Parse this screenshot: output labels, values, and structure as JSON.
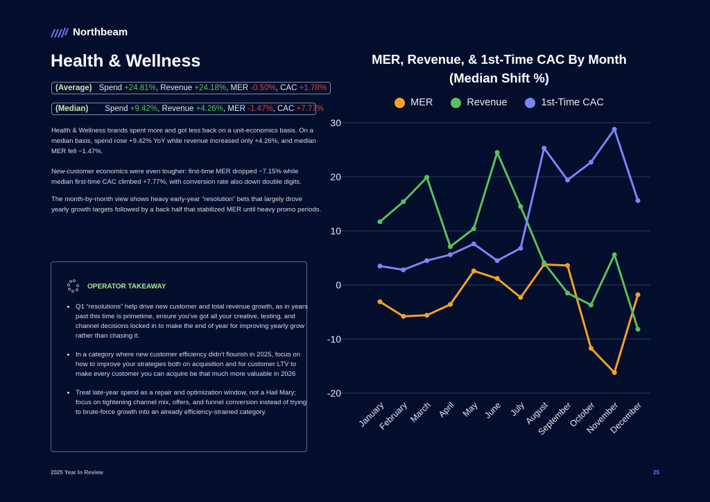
{
  "brand": {
    "name": "Northbeam"
  },
  "page_title": "Health & Wellness",
  "stats": {
    "average": {
      "label": "(Average)",
      "spend_label": "Spend ",
      "spend": "+24.81%",
      "revenue_label": ", Revenue ",
      "revenue": "+24.18%",
      "mer_label": ", MER ",
      "mer": "-0.50%",
      "cac_label": ", CAC ",
      "cac": "+1.78%"
    },
    "median": {
      "label": "(Median)",
      "spend_label": "Spend ",
      "spend": "+9.42%",
      "revenue_label": ", Revenue ",
      "revenue": "+4.26%",
      "mer_label": ", MER ",
      "mer": "-1.47%",
      "cac_label": ", CAC ",
      "cac": "+7.77%"
    }
  },
  "paragraphs": [
    "Health & Wellness brands spent more and got less back on a unit-economics basis. On a median basis, spend rose +9.42% YoY while revenue increased only +4.26%, and median MER fell −1.47%.",
    "New-customer economics were even tougher: first-time MER dropped −7.15% while median first-time CAC climbed +7.77%, with conversion rate also down double digits.",
    "The month-by-month view shows  heavy early-year “resolution” bets that largely drove yearly growth targets followed by a back half that stabilized MER until heavy promo periods."
  ],
  "takeaway": {
    "heading": "OPERATOR TAKEAWAY",
    "bullets": [
      "Q1 “resolutions” help drive new customer and total revenue growth, as in years past this time is primetime, ensure you’ve got all your creative, testing, and channel decisions locked in to make the end of year for improving yearly grow rather than chasing it.",
      "In a category where new customer efficiency didn’t flourish in 2025, focus on how to improve your strategies both on acquisition and for customer LTV to make every customer you can acquire be that much more valuable in 2026",
      "Treat late-year spend as a repair and optimization window, not a Hail Mary; focus on tightening channel mix, offers, and funnel conversion instead of trying to brute-force growth into an already efficiency-strained category."
    ]
  },
  "footer": {
    "left": "2025 Year In Review",
    "page_number": "25"
  },
  "chart_data": {
    "type": "line",
    "title": "MER, Revenue, & 1st-Time CAC By Month",
    "subtitle": "(Median Shift %)",
    "categories": [
      "January",
      "February",
      "March",
      "April",
      "May",
      "June",
      "July",
      "August",
      "September",
      "October",
      "November",
      "December"
    ],
    "ylim": [
      -20,
      30
    ],
    "yticks": [
      30,
      20,
      10,
      0,
      -10,
      -20
    ],
    "grid": true,
    "legend_position": "top",
    "series": [
      {
        "name": "MER",
        "color": "#f5a02a",
        "values": [
          -3.1,
          -5.8,
          -5.6,
          -3.6,
          2.6,
          1.2,
          -2.3,
          3.8,
          3.6,
          -11.7,
          -16.2,
          -1.8
        ]
      },
      {
        "name": "Revenue",
        "color": "#5cc05a",
        "values": [
          11.7,
          15.4,
          19.9,
          7.1,
          10.4,
          24.5,
          14.5,
          4.1,
          -1.5,
          -3.7,
          5.6,
          -8.2
        ]
      },
      {
        "name": "1st-Time CAC",
        "color": "#7a86f5",
        "values": [
          3.5,
          2.8,
          4.5,
          5.6,
          7.6,
          4.5,
          6.8,
          25.3,
          19.4,
          22.7,
          28.8,
          15.6
        ]
      }
    ]
  }
}
